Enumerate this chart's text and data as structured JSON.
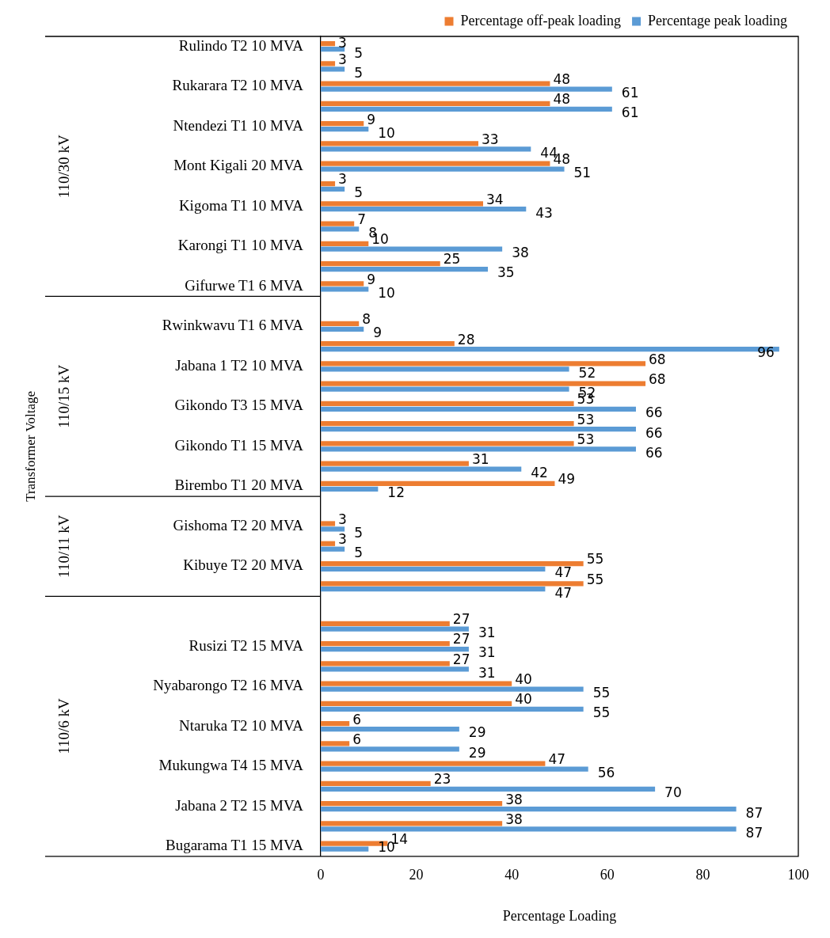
{
  "chart_data": {
    "type": "bar",
    "orientation": "horizontal",
    "xlabel": "Percentage Loading",
    "categories": [
      "Rulindo T2 10 MVA",
      null,
      "Rukarara T2 10 MVA",
      null,
      "Ntendezi T1 10 MVA",
      null,
      "Mont Kigali 20 MVA",
      null,
      "Kigoma T1 10 MVA",
      null,
      "Karongi T1 10 MVA",
      null,
      "Gifurwe T1 6 MVA",
      null,
      "Rwinkwavu T1 6 MVA",
      null,
      "Jabana 1 T2 10 MVA",
      null,
      "Gikondo T3 15 MVA",
      null,
      "Gikondo T1 15 MVA",
      null,
      "Birembo T1 20 MVA",
      null,
      "Gishoma T2 20 MVA",
      null,
      "Kibuye T2 20 MVA",
      null,
      null,
      null,
      "Rusizi T2 15 MVA",
      null,
      "Nyabarongo T2 16 MVA",
      null,
      "Ntaruka T2 10 MVA",
      null,
      "Mukungwa T4 15 MVA",
      null,
      "Jabana 2 T2 15 MVA",
      null,
      "Bugarama T1 15 MVA"
    ],
    "series": [
      {
        "name": "Percentage off-peak loading",
        "color": "#ed7d31",
        "values": [
          3,
          3,
          48,
          48,
          9,
          33,
          48,
          3,
          34,
          7,
          10,
          25,
          9,
          null,
          8,
          28,
          68,
          68,
          53,
          53,
          53,
          31,
          49,
          null,
          3,
          3,
          55,
          55,
          null,
          27,
          27,
          27,
          40,
          40,
          6,
          6,
          47,
          23,
          38,
          38,
          14
        ]
      },
      {
        "name": "Percentage peak loading",
        "color": "#5b9bd5",
        "values": [
          5,
          5,
          61,
          61,
          10,
          44,
          51,
          5,
          43,
          8,
          38,
          35,
          10,
          null,
          9,
          96,
          52,
          52,
          66,
          66,
          66,
          42,
          12,
          null,
          5,
          5,
          47,
          47,
          null,
          31,
          31,
          31,
          55,
          55,
          29,
          29,
          56,
          70,
          87,
          87,
          10
        ]
      }
    ],
    "annotations": [
      "110/30 kV",
      "110/15 kV",
      "110/11 kV",
      "110/6 kV",
      "Transformer Voltage"
    ],
    "xlim": [
      0,
      100
    ],
    "xticks": [
      0,
      20,
      40,
      60,
      80,
      100
    ],
    "grid": false,
    "legend": "top",
    "data_labels": true
  }
}
